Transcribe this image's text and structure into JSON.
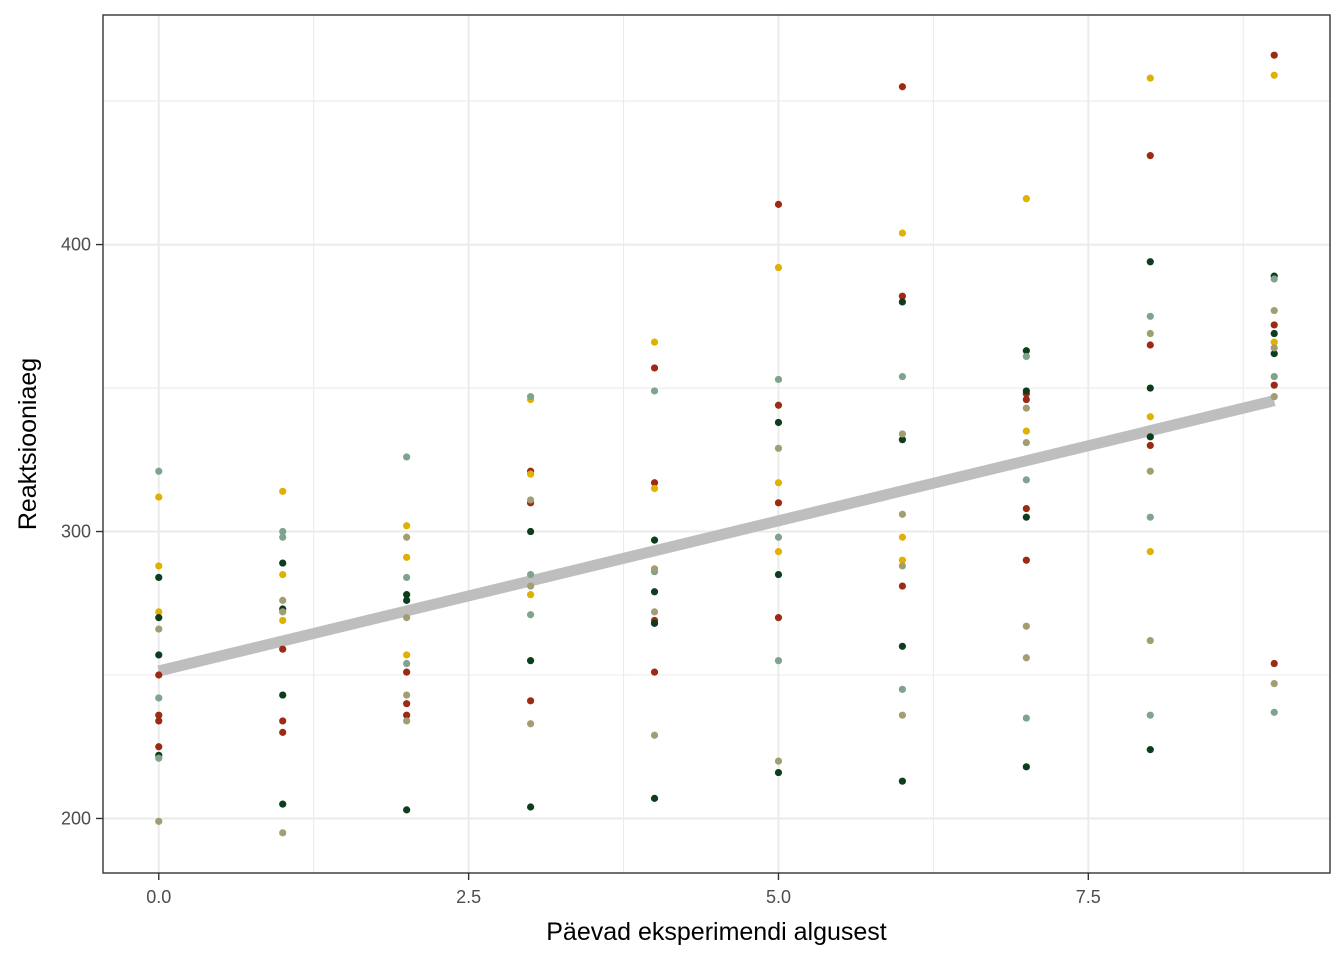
{
  "chart_data": {
    "type": "scatter",
    "title": "",
    "xlabel": "Päevad eksperimendi algusest",
    "ylabel": "Reaktsiooniaeg",
    "xlim": [
      -0.45,
      9.45
    ],
    "ylim": [
      181,
      480
    ],
    "x_ticks": [
      0,
      2.5,
      5,
      7.5
    ],
    "x_tick_labels": [
      "0.0",
      "2.5",
      "5.0",
      "7.5"
    ],
    "x_minor_ticks": [
      1.25,
      3.75,
      6.25,
      8.75
    ],
    "y_ticks": [
      200,
      300,
      400
    ],
    "y_tick_labels": [
      "200",
      "300",
      "400"
    ],
    "y_minor_ticks": [
      250,
      350,
      450
    ],
    "grid": true,
    "legend": "none",
    "point_colors": {
      "red": "#9c2a14",
      "yellow": "#e0b100",
      "darkgreen": "#0e3d1e",
      "sage": "#7fa38c",
      "olive": "#a29e74"
    },
    "series": [
      {
        "color_key": "red",
        "points": [
          [
            0,
            250
          ],
          [
            0,
            236
          ],
          [
            0,
            234
          ],
          [
            0,
            225
          ],
          [
            1,
            259
          ],
          [
            1,
            234
          ],
          [
            1,
            230
          ],
          [
            2,
            251
          ],
          [
            2,
            240
          ],
          [
            2,
            236
          ],
          [
            3,
            321
          ],
          [
            3,
            310
          ],
          [
            3,
            241
          ],
          [
            4,
            357
          ],
          [
            4,
            317
          ],
          [
            4,
            269
          ],
          [
            4,
            251
          ],
          [
            5,
            414
          ],
          [
            5,
            344
          ],
          [
            5,
            310
          ],
          [
            5,
            270
          ],
          [
            6,
            455
          ],
          [
            6,
            382
          ],
          [
            6,
            281
          ],
          [
            7,
            348
          ],
          [
            7,
            346
          ],
          [
            7,
            308
          ],
          [
            7,
            290
          ],
          [
            8,
            431
          ],
          [
            8,
            365
          ],
          [
            8,
            330
          ],
          [
            9,
            466
          ],
          [
            9,
            372
          ],
          [
            9,
            351
          ],
          [
            9,
            254
          ]
        ]
      },
      {
        "color_key": "yellow",
        "points": [
          [
            0,
            312
          ],
          [
            0,
            288
          ],
          [
            0,
            272
          ],
          [
            1,
            314
          ],
          [
            1,
            285
          ],
          [
            1,
            269
          ],
          [
            2,
            302
          ],
          [
            2,
            291
          ],
          [
            2,
            257
          ],
          [
            3,
            346
          ],
          [
            3,
            320
          ],
          [
            3,
            278
          ],
          [
            4,
            366
          ],
          [
            4,
            315
          ],
          [
            5,
            392
          ],
          [
            5,
            317
          ],
          [
            5,
            293
          ],
          [
            6,
            404
          ],
          [
            6,
            298
          ],
          [
            6,
            290
          ],
          [
            7,
            416
          ],
          [
            7,
            335
          ],
          [
            8,
            458
          ],
          [
            8,
            340
          ],
          [
            8,
            293
          ],
          [
            9,
            459
          ],
          [
            9,
            366
          ]
        ]
      },
      {
        "color_key": "darkgreen",
        "points": [
          [
            0,
            284
          ],
          [
            0,
            270
          ],
          [
            0,
            257
          ],
          [
            0,
            222
          ],
          [
            1,
            289
          ],
          [
            1,
            273
          ],
          [
            1,
            243
          ],
          [
            1,
            205
          ],
          [
            2,
            278
          ],
          [
            2,
            276
          ],
          [
            2,
            203
          ],
          [
            3,
            300
          ],
          [
            3,
            255
          ],
          [
            3,
            204
          ],
          [
            4,
            297
          ],
          [
            4,
            279
          ],
          [
            4,
            268
          ],
          [
            4,
            207
          ],
          [
            5,
            338
          ],
          [
            5,
            285
          ],
          [
            5,
            216
          ],
          [
            6,
            380
          ],
          [
            6,
            332
          ],
          [
            6,
            260
          ],
          [
            6,
            213
          ],
          [
            7,
            363
          ],
          [
            7,
            349
          ],
          [
            7,
            305
          ],
          [
            7,
            218
          ],
          [
            8,
            394
          ],
          [
            8,
            350
          ],
          [
            8,
            333
          ],
          [
            8,
            224
          ],
          [
            9,
            389
          ],
          [
            9,
            369
          ],
          [
            9,
            362
          ]
        ]
      },
      {
        "color_key": "sage",
        "points": [
          [
            0,
            321
          ],
          [
            0,
            242
          ],
          [
            0,
            221
          ],
          [
            1,
            300
          ],
          [
            1,
            298
          ],
          [
            2,
            326
          ],
          [
            2,
            284
          ],
          [
            2,
            254
          ],
          [
            3,
            347
          ],
          [
            3,
            285
          ],
          [
            3,
            271
          ],
          [
            4,
            349
          ],
          [
            4,
            286
          ],
          [
            5,
            353
          ],
          [
            5,
            298
          ],
          [
            5,
            255
          ],
          [
            6,
            354
          ],
          [
            6,
            245
          ],
          [
            7,
            361
          ],
          [
            7,
            318
          ],
          [
            7,
            235
          ],
          [
            8,
            375
          ],
          [
            8,
            305
          ],
          [
            8,
            236
          ],
          [
            9,
            388
          ],
          [
            9,
            354
          ],
          [
            9,
            237
          ]
        ]
      },
      {
        "color_key": "olive",
        "points": [
          [
            0,
            266
          ],
          [
            0,
            199
          ],
          [
            1,
            276
          ],
          [
            1,
            272
          ],
          [
            1,
            195
          ],
          [
            2,
            298
          ],
          [
            2,
            270
          ],
          [
            2,
            243
          ],
          [
            2,
            234
          ],
          [
            3,
            311
          ],
          [
            3,
            281
          ],
          [
            3,
            233
          ],
          [
            4,
            287
          ],
          [
            4,
            272
          ],
          [
            4,
            229
          ],
          [
            5,
            329
          ],
          [
            5,
            220
          ],
          [
            6,
            334
          ],
          [
            6,
            306
          ],
          [
            6,
            288
          ],
          [
            6,
            236
          ],
          [
            7,
            343
          ],
          [
            7,
            331
          ],
          [
            7,
            267
          ],
          [
            7,
            256
          ],
          [
            8,
            369
          ],
          [
            8,
            321
          ],
          [
            8,
            262
          ],
          [
            9,
            377
          ],
          [
            9,
            364
          ],
          [
            9,
            347
          ],
          [
            9,
            247
          ]
        ]
      }
    ],
    "trend_line": {
      "x": [
        0,
        9
      ],
      "y": [
        251.4,
        345.6
      ],
      "color": "#bebebe"
    },
    "panel_border_color": "#333333",
    "grid_color": "#ebebeb"
  }
}
